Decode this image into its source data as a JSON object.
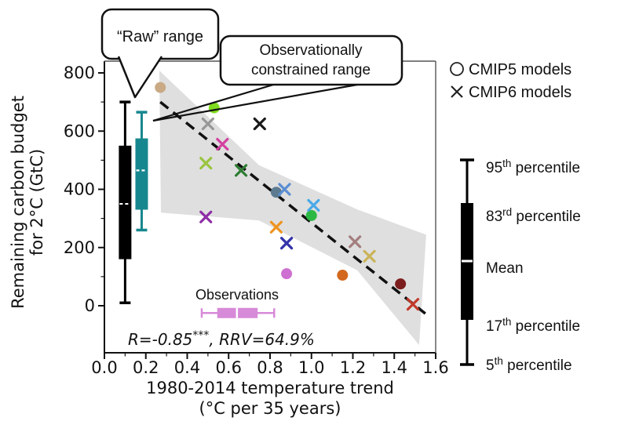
{
  "figure": {
    "callouts": {
      "raw_label": "“Raw” range",
      "constrained_line1": "Observationally",
      "constrained_line2": "constrained range",
      "constrained_color": "#17878f"
    },
    "legend": {
      "cmip5_label": "CMIP5 models",
      "cmip6_label": "CMIP6 models"
    },
    "percentile_legend": [
      {
        "num": "95",
        "sup": "th",
        "rest": " percentile"
      },
      {
        "num": "83",
        "sup": "rd",
        "rest": " percentile"
      },
      {
        "num": "Mean",
        "sup": "",
        "rest": ""
      },
      {
        "num": "17",
        "sup": "th",
        "rest": " percentile"
      },
      {
        "num": "5",
        "sup": "th",
        "rest": " percentile"
      }
    ],
    "annotation": {
      "prefix": "R=-0.85",
      "sup": "***",
      "suffix": ", RRV=64.9%"
    }
  },
  "chart_data": {
    "type": "scatter",
    "xlabel_line1": "1980-2014 temperature trend",
    "xlabel_line2": "(°C per 35 years)",
    "ylabel_line1": "Remaining carbon budget",
    "ylabel_line2": "for 2°C (GtC)",
    "xlim": [
      0,
      1.6
    ],
    "ylim": [
      -160,
      840
    ],
    "grid": false,
    "xticks": {
      "values": [
        0,
        0.2,
        0.4,
        0.6,
        0.8,
        1.0,
        1.2,
        1.4,
        1.6
      ],
      "labels": [
        "0.0",
        "0.2",
        "0.4",
        "0.6",
        "0.8",
        "1.0",
        "1.2",
        "1.4",
        "1.6"
      ]
    },
    "yticks": {
      "values": [
        0,
        200,
        400,
        600,
        800
      ],
      "labels": [
        "0",
        "200",
        "400",
        "600",
        "800"
      ]
    },
    "series": [
      {
        "name": "CMIP5 models",
        "marker": "circle",
        "points": [
          {
            "x": 0.27,
            "y": 750,
            "color": "#c9aa85"
          },
          {
            "x": 0.53,
            "y": 680,
            "color": "#7fdc1f"
          },
          {
            "x": 0.83,
            "y": 390,
            "color": "#5d7b90"
          },
          {
            "x": 1.0,
            "y": 310,
            "color": "#2cb844"
          },
          {
            "x": 0.88,
            "y": 110,
            "color": "#ce70d2"
          },
          {
            "x": 1.15,
            "y": 105,
            "color": "#d2691e"
          },
          {
            "x": 1.43,
            "y": 75,
            "color": "#7c1d1d"
          }
        ]
      },
      {
        "name": "CMIP6 models",
        "marker": "x",
        "points": [
          {
            "x": 0.5,
            "y": 625,
            "color": "#979797"
          },
          {
            "x": 0.75,
            "y": 625,
            "color": "#1a1a1a"
          },
          {
            "x": 0.57,
            "y": 555,
            "color": "#d4409f"
          },
          {
            "x": 0.49,
            "y": 490,
            "color": "#99c43f"
          },
          {
            "x": 0.66,
            "y": 465,
            "color": "#2e7d32"
          },
          {
            "x": 0.87,
            "y": 400,
            "color": "#5a8ed2"
          },
          {
            "x": 1.01,
            "y": 345,
            "color": "#47a9e8"
          },
          {
            "x": 0.83,
            "y": 270,
            "color": "#ef941e"
          },
          {
            "x": 0.88,
            "y": 215,
            "color": "#3333aa"
          },
          {
            "x": 0.49,
            "y": 305,
            "color": "#8e2da6"
          },
          {
            "x": 1.21,
            "y": 220,
            "color": "#a37e7e"
          },
          {
            "x": 1.28,
            "y": 170,
            "color": "#c9b45a"
          },
          {
            "x": 1.49,
            "y": 5,
            "color": "#c23a2a"
          }
        ]
      }
    ],
    "regression": {
      "x1": 0.27,
      "y1": 700,
      "x2": 1.55,
      "y2": -27,
      "r": "-0.85",
      "rrv": "64.9%",
      "dash_color": "#111111"
    },
    "confidence_band": {
      "color": "#dcdcdc",
      "polygon": [
        [
          0.265,
          808
        ],
        [
          0.747,
          483
        ],
        [
          1.221,
          331
        ],
        [
          1.554,
          244
        ],
        [
          1.52,
          -135
        ],
        [
          1.221,
          122
        ],
        [
          0.747,
          293
        ],
        [
          0.273,
          320
        ]
      ]
    },
    "boxplots": {
      "raw": {
        "x": 0.1,
        "p5": 10,
        "p17": 160,
        "mean": 350,
        "p83": 550,
        "p95": 700,
        "color": "#000000"
      },
      "constrained": {
        "x": 0.18,
        "p5": 260,
        "p17": 330,
        "mean": 465,
        "p83": 575,
        "p95": 665,
        "color": "#17878f"
      },
      "observations": {
        "y": -25,
        "low": 0.47,
        "q1": 0.545,
        "median": 0.64,
        "q3": 0.74,
        "high": 0.82,
        "color": "#d78ad8",
        "label": "Observations"
      }
    }
  }
}
